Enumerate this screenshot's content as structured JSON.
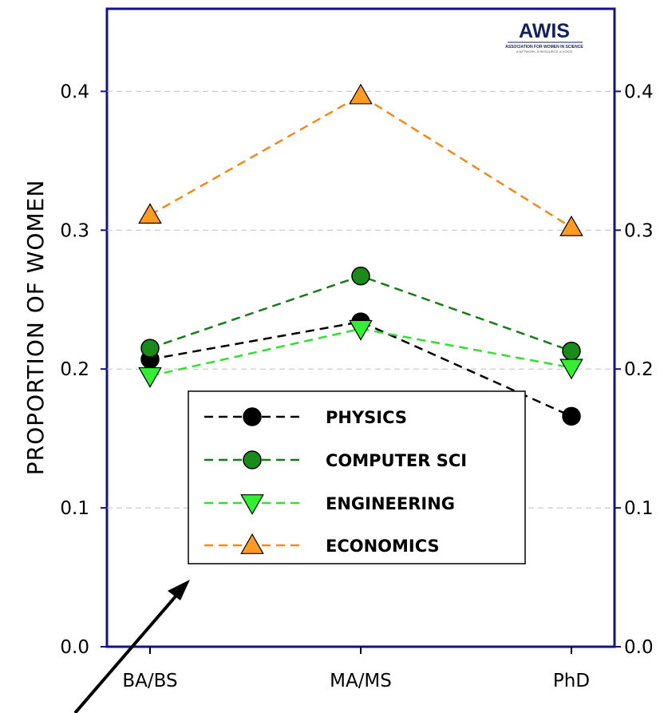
{
  "chart_data": {
    "type": "line",
    "title": "",
    "ylabel": "PROPORTION OF WOMEN",
    "xlabel": "",
    "categories": [
      "BA/BS",
      "MA/MS",
      "PhD"
    ],
    "ylim": [
      0.0,
      0.46
    ],
    "yticks": [
      "0.0",
      "0.1",
      "0.2",
      "0.3",
      "0.4"
    ],
    "secondary_y_axis": true,
    "grid": "horizontal dashed",
    "legend_position": "center-right",
    "series": [
      {
        "name": "PHYSICS",
        "values": [
          0.207,
          0.234,
          0.166
        ],
        "color": "#000000",
        "marker": "circle",
        "marker_fill": "#000000"
      },
      {
        "name": "COMPUTER SCI",
        "values": [
          0.215,
          0.267,
          0.213
        ],
        "color": "#1a7a1a",
        "marker": "circle",
        "marker_fill": "#1a8a1a"
      },
      {
        "name": "ENGINEERING",
        "values": [
          0.195,
          0.229,
          0.201
        ],
        "color": "#33dd33",
        "marker": "triangle-down",
        "marker_fill": "#33ee33"
      },
      {
        "name": "ECONOMICS",
        "values": [
          0.311,
          0.397,
          0.302
        ],
        "color": "#f08a1c",
        "marker": "triangle-up",
        "marker_fill": "#ff9a22"
      }
    ]
  },
  "logo": {
    "main": "AWIS",
    "subtitle": "ASSOCIATION FOR WOMEN IN SCIENCE",
    "tagline": "A NETWORK, A RESOURCE, A VOICE"
  },
  "colors": {
    "frame": "#13138a",
    "grid": "#c0c0c0",
    "arrow": "#000000"
  }
}
